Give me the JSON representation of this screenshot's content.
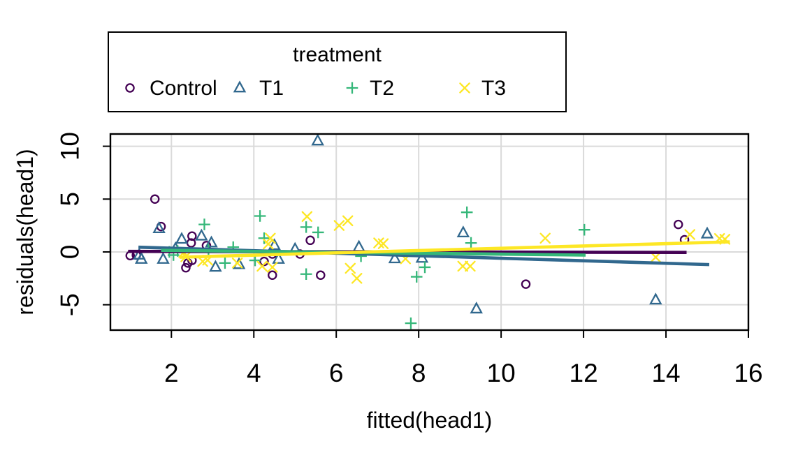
{
  "chart_data": {
    "type": "scatter",
    "title": "",
    "xlabel": "fitted(head1)",
    "ylabel": "residuals(head1)",
    "xlim": [
      0.52,
      16.0
    ],
    "ylim": [
      -7.4,
      11.16
    ],
    "x_ticks": [
      2,
      4,
      6,
      8,
      10,
      12,
      14,
      16
    ],
    "y_ticks": [
      -5,
      0,
      5,
      10
    ],
    "grid": true,
    "grid_color": "#DADADA",
    "box_color": "#000000",
    "background": "#FFFFFF",
    "legend": {
      "title": "treatment",
      "position": "top",
      "entries": [
        {
          "label": "Control",
          "marker": "circle",
          "color": "#440154"
        },
        {
          "label": "T1",
          "marker": "triangle",
          "color": "#31688E"
        },
        {
          "label": "T2",
          "marker": "plus",
          "color": "#35B779"
        },
        {
          "label": "T3",
          "marker": "x",
          "color": "#FDE725"
        }
      ]
    },
    "series": [
      {
        "name": "Control",
        "marker": "circle",
        "color": "#440154",
        "points": [
          [
            1.0,
            -0.35
          ],
          [
            1.15,
            -0.3
          ],
          [
            1.6,
            5.0
          ],
          [
            1.75,
            2.4
          ],
          [
            2.35,
            -1.5
          ],
          [
            2.4,
            -1.05
          ],
          [
            2.48,
            0.85
          ],
          [
            2.5,
            -0.8
          ],
          [
            2.5,
            1.5
          ],
          [
            2.85,
            0.6
          ],
          [
            4.25,
            -0.9
          ],
          [
            4.45,
            -2.2
          ],
          [
            4.45,
            -0.2
          ],
          [
            5.12,
            -0.2
          ],
          [
            5.37,
            1.1
          ],
          [
            5.62,
            -2.2
          ],
          [
            10.6,
            -3.05
          ],
          [
            14.3,
            2.6
          ],
          [
            14.45,
            1.15
          ]
        ],
        "fit_line": {
          "x": [
            0.95,
            14.5
          ],
          "y": [
            0.05,
            -0.05
          ]
        }
      },
      {
        "name": "T1",
        "marker": "triangle",
        "color": "#31688E",
        "points": [
          [
            1.22,
            -0.3
          ],
          [
            1.27,
            -0.7
          ],
          [
            1.7,
            2.2
          ],
          [
            1.8,
            -0.7
          ],
          [
            2.1,
            0.3
          ],
          [
            2.25,
            1.2
          ],
          [
            2.73,
            1.5
          ],
          [
            2.97,
            0.85
          ],
          [
            3.07,
            -1.45
          ],
          [
            3.64,
            -1.2
          ],
          [
            4.5,
            0.6
          ],
          [
            4.6,
            -0.7
          ],
          [
            5.0,
            0.25
          ],
          [
            5.55,
            10.5
          ],
          [
            6.55,
            0.45
          ],
          [
            7.42,
            -0.65
          ],
          [
            8.08,
            -0.6
          ],
          [
            9.08,
            1.8
          ],
          [
            9.4,
            -5.4
          ],
          [
            13.75,
            -4.55
          ],
          [
            15.0,
            1.7
          ]
        ],
        "fit_line": {
          "x": [
            1.2,
            15.05
          ],
          "y": [
            0.45,
            -1.2
          ]
        }
      },
      {
        "name": "T2",
        "marker": "plus",
        "color": "#35B779",
        "points": [
          [
            1.95,
            0.0
          ],
          [
            2.05,
            -0.3
          ],
          [
            2.15,
            0.1
          ],
          [
            2.8,
            2.6
          ],
          [
            2.9,
            0.2
          ],
          [
            3.3,
            -1.05
          ],
          [
            3.5,
            0.45
          ],
          [
            4.03,
            -0.8
          ],
          [
            4.15,
            3.4
          ],
          [
            4.25,
            1.3
          ],
          [
            5.27,
            -2.1
          ],
          [
            5.27,
            2.35
          ],
          [
            5.56,
            1.85
          ],
          [
            6.6,
            -0.4
          ],
          [
            7.81,
            -6.75
          ],
          [
            7.95,
            -2.35
          ],
          [
            8.15,
            -1.45
          ],
          [
            9.17,
            3.75
          ],
          [
            9.27,
            0.85
          ],
          [
            12.02,
            2.1
          ]
        ],
        "fit_line": {
          "x": [
            1.75,
            12.05
          ],
          "y": [
            0.15,
            -0.3
          ]
        }
      },
      {
        "name": "T3",
        "marker": "x",
        "color": "#FDE725",
        "points": [
          [
            2.3,
            -0.05
          ],
          [
            2.35,
            -0.45
          ],
          [
            2.76,
            -0.9
          ],
          [
            2.88,
            -0.78
          ],
          [
            3.6,
            -1.05
          ],
          [
            4.2,
            -1.35
          ],
          [
            4.35,
            0.75
          ],
          [
            4.4,
            1.3
          ],
          [
            4.45,
            -1.45
          ],
          [
            5.29,
            3.35
          ],
          [
            6.07,
            2.5
          ],
          [
            6.28,
            2.95
          ],
          [
            6.34,
            -1.55
          ],
          [
            6.5,
            -2.5
          ],
          [
            7.03,
            0.85
          ],
          [
            7.14,
            0.78
          ],
          [
            7.68,
            -0.65
          ],
          [
            9.07,
            -1.35
          ],
          [
            9.25,
            -1.35
          ],
          [
            11.07,
            1.3
          ],
          [
            13.75,
            -0.5
          ],
          [
            14.58,
            1.65
          ],
          [
            15.3,
            1.27
          ],
          [
            15.43,
            1.2
          ]
        ],
        "fit_line": {
          "x": [
            2.2,
            15.55
          ],
          "y": [
            -0.5,
            0.95
          ]
        }
      }
    ]
  }
}
